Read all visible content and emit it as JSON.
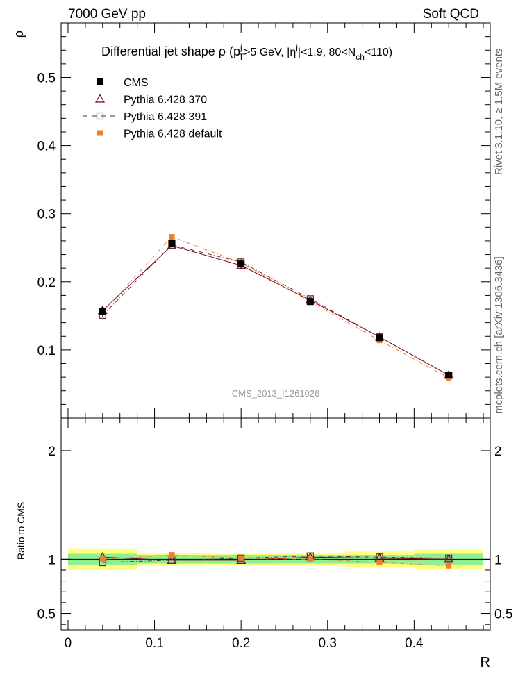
{
  "header": {
    "energy_label": "7000 GeV pp",
    "process_label": "Soft QCD"
  },
  "side": {
    "rivet_label": "Rivet 3.1.10, ≥ 1.5M events",
    "mcplots_label": "mcplots.cern.ch [arXiv:1306.3436]"
  },
  "watermark": "CMS_2013_I1261026",
  "title": {
    "main": "Differential jet shape  ρ (p",
    "sup1": "j",
    "sub1": "T",
    "mid1": ">5 GeV, |η",
    "sup2": "j",
    "mid2": "|<1.9, 80<N",
    "sub2": "ch",
    "end": "<110)"
  },
  "legend": [
    {
      "label": "CMS",
      "color": "#000000",
      "marker": "filled-square"
    },
    {
      "label": "Pythia 6.428 370",
      "color": "#800020",
      "marker": "open-triangle"
    },
    {
      "label": "Pythia 6.428 391",
      "color": "#5a2a3a",
      "marker": "open-square"
    },
    {
      "label": "Pythia 6.428 default",
      "color": "#f57c2b",
      "marker": "filled-square-small"
    }
  ],
  "chart_data": [
    {
      "type": "line",
      "panel": "main",
      "ylabel": "ρ",
      "xlim": [
        -0.008,
        0.488
      ],
      "ylim": [
        0,
        0.58
      ],
      "yticks": [
        "0.1",
        "0.2",
        "0.3",
        "0.4",
        "0.5"
      ],
      "x": [
        0.04,
        0.12,
        0.2,
        0.28,
        0.36,
        0.44
      ],
      "series": [
        {
          "name": "CMS",
          "values": [
            0.156,
            0.256,
            0.226,
            0.171,
            0.118,
            0.063
          ],
          "errors": [
            0.008,
            0.008,
            0.007,
            0.005,
            0.004,
            0.003
          ]
        },
        {
          "name": "Pythia 6.428 370",
          "values": [
            0.158,
            0.253,
            0.224,
            0.173,
            0.119,
            0.063
          ]
        },
        {
          "name": "Pythia 6.428 391",
          "values": [
            0.151,
            0.254,
            0.229,
            0.175,
            0.119,
            0.063
          ]
        },
        {
          "name": "Pythia 6.428 default",
          "values": [
            0.156,
            0.266,
            0.228,
            0.171,
            0.114,
            0.059
          ]
        }
      ]
    },
    {
      "type": "line",
      "panel": "ratio",
      "ylabel": "Ratio to CMS",
      "xlabel": "R",
      "xlim": [
        -0.008,
        0.488
      ],
      "ylim": [
        0.35,
        2.3
      ],
      "yticks": [
        "0.5",
        "1",
        "2"
      ],
      "xticks": [
        "0",
        "0.1",
        "0.2",
        "0.3",
        "0.4"
      ],
      "x": [
        0.04,
        0.12,
        0.2,
        0.28,
        0.36,
        0.44
      ],
      "bin_edges": [
        0.0,
        0.08,
        0.16,
        0.24,
        0.32,
        0.4,
        0.48
      ],
      "band_stat": [
        0.05,
        0.04,
        0.04,
        0.04,
        0.04,
        0.05
      ],
      "band_total": [
        0.1,
        0.06,
        0.05,
        0.06,
        0.07,
        0.09
      ],
      "series": [
        {
          "name": "Pythia 6.428 370",
          "values": [
            1.02,
            0.99,
            0.99,
            1.02,
            1.01,
            1.0
          ]
        },
        {
          "name": "Pythia 6.428 391",
          "values": [
            0.97,
            0.99,
            1.01,
            1.03,
            1.02,
            1.01
          ]
        },
        {
          "name": "Pythia 6.428 default",
          "values": [
            1.0,
            1.04,
            1.01,
            1.0,
            0.97,
            0.94
          ]
        }
      ]
    }
  ],
  "colors": {
    "band_outer": "#ffff80",
    "band_inner": "#90f090",
    "line_370": "#800020",
    "line_391": "#5a2a3a",
    "line_default": "#f57c2b"
  }
}
